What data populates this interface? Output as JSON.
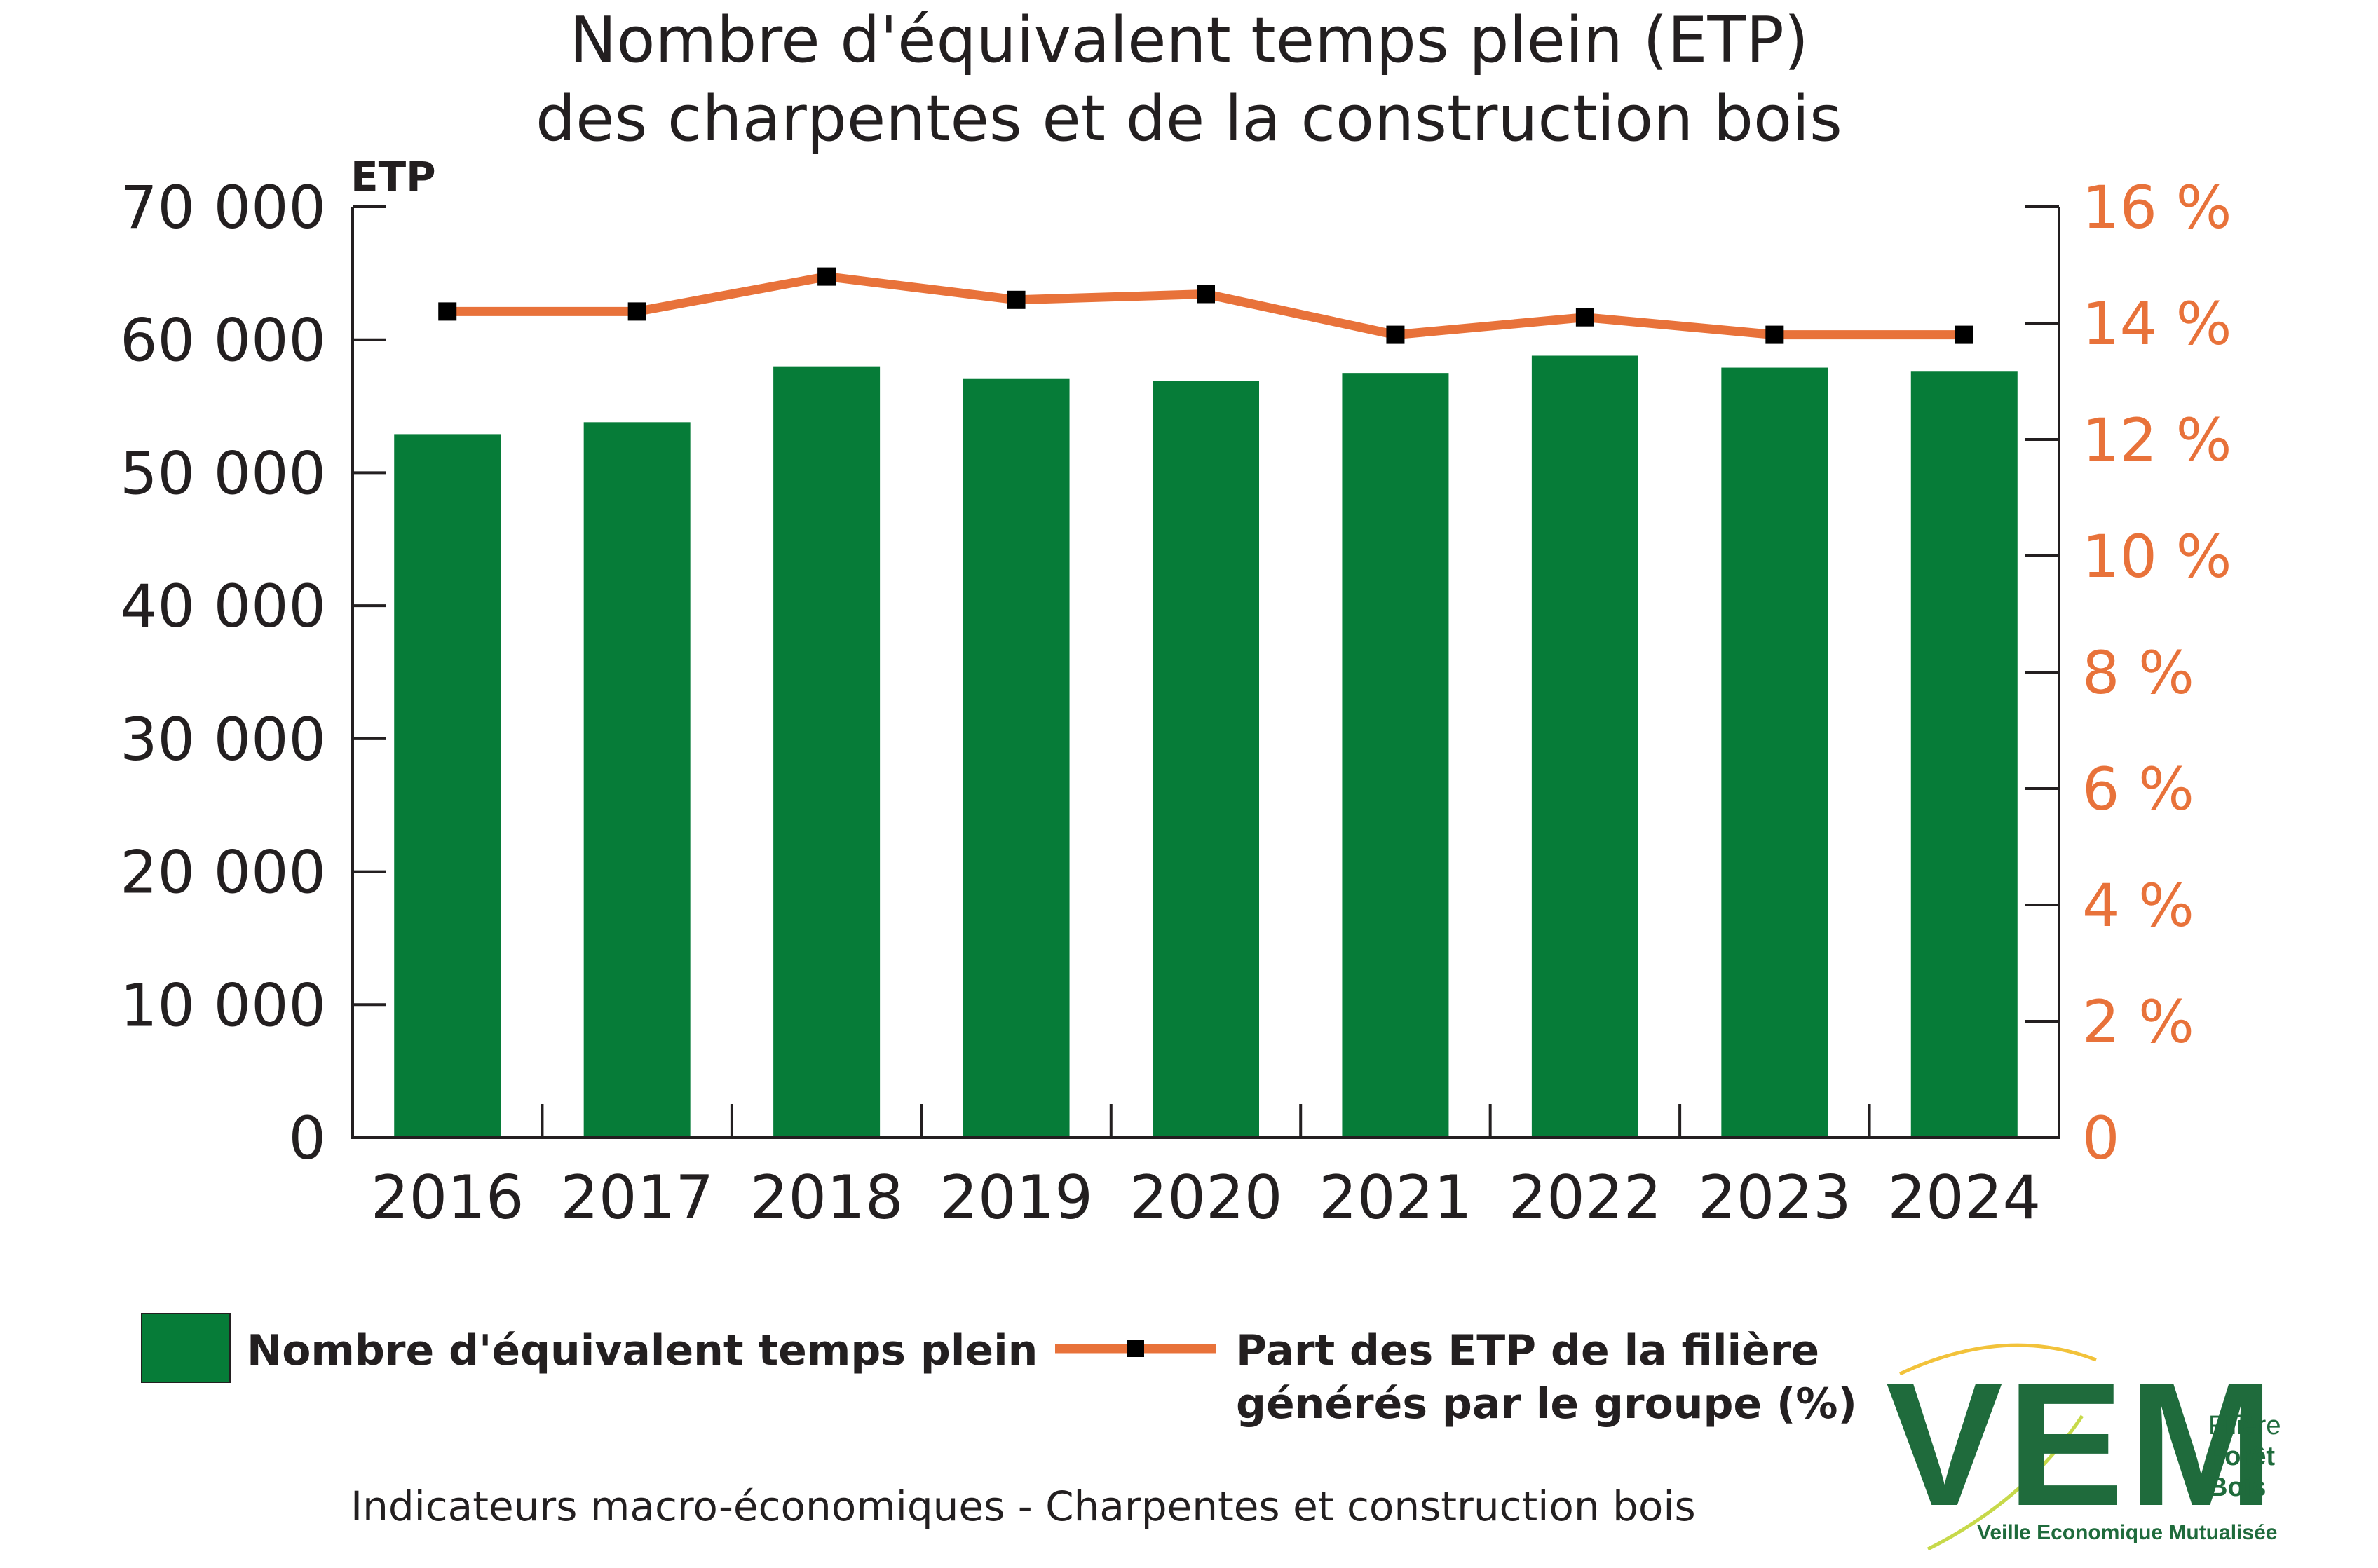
{
  "chart_data": {
    "type": "bar",
    "title": "Nombre d'équivalent temps plein (ETP)",
    "subtitle": "des charpentes et de la construction bois",
    "categories": [
      "2016",
      "2017",
      "2018",
      "2019",
      "2020",
      "2021",
      "2022",
      "2023",
      "2024"
    ],
    "ylabel": "ETP",
    "ylim": [
      0,
      70000
    ],
    "yticks": [
      "0",
      "10 000",
      "20 000",
      "30 000",
      "40 000",
      "50 000",
      "60 000",
      "70 000"
    ],
    "y2lim": [
      0,
      16
    ],
    "y2ticks": [
      "0",
      "2 %",
      "4 %",
      "6 %",
      "8 %",
      "10 %",
      "12 %",
      "14 %",
      "16 %"
    ],
    "series": [
      {
        "name": "Nombre d'équivalent temps plein",
        "type": "bar",
        "axis": "left",
        "color": "#067c38",
        "values": [
          52900,
          53800,
          58000,
          57100,
          56900,
          57500,
          58800,
          57900,
          57600
        ]
      },
      {
        "name": "Part des ETP de la filière générés par le groupe (%)",
        "type": "line",
        "axis": "right",
        "color": "#e8723a",
        "marker_color": "#000000",
        "values": [
          14.2,
          14.2,
          14.8,
          14.4,
          14.5,
          13.8,
          14.1,
          13.8,
          13.8
        ]
      }
    ],
    "legend_position": "bottom",
    "grid": false
  },
  "legend": {
    "bars_label": "Nombre d'équivalent temps plein",
    "line_label_1": "Part des ETP de la filière",
    "line_label_2": "générés par le groupe (%)"
  },
  "footer": {
    "source": "Indicateurs macro-économiques - Charpentes et construction bois"
  },
  "logo": {
    "letters": "VEM",
    "side_1": "Filière",
    "side_2": "Forêt",
    "side_3": "Bois",
    "subtitle": "Veille Economique Mutualisée",
    "color": "#1f6b3c",
    "accent": "#f2c23a"
  }
}
